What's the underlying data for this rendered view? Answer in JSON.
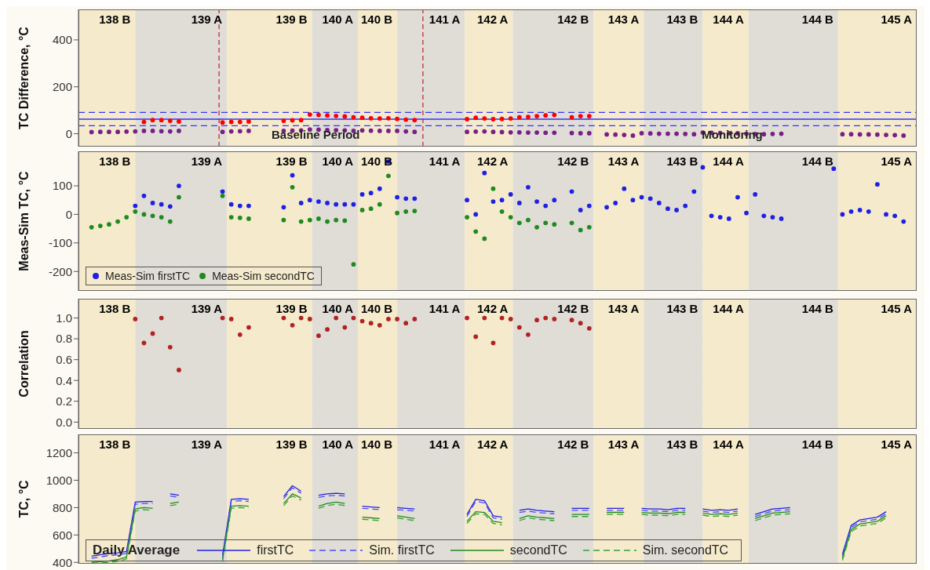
{
  "chart_data": [
    {
      "type": "scatter",
      "ylabel": "TC Difference, °C",
      "categories": [
        null,
        null,
        null,
        null,
        null,
        null,
        null,
        null,
        null,
        null,
        null,
        null,
        null,
        null,
        null,
        null,
        null,
        null,
        null,
        null,
        null,
        null,
        null,
        null,
        null,
        null,
        null,
        null,
        null,
        null,
        null,
        null,
        null,
        null,
        null,
        null,
        null,
        null,
        null,
        null,
        null,
        null,
        null,
        null,
        null,
        null,
        null,
        null,
        null,
        null,
        null,
        null,
        null,
        null,
        null,
        null,
        null,
        null,
        null,
        null,
        null,
        null,
        null,
        null,
        null,
        null,
        null,
        null,
        null,
        null,
        null,
        null,
        null,
        null,
        null,
        null,
        null,
        null,
        null,
        null,
        null,
        null,
        null,
        null,
        null,
        null,
        null,
        null,
        null,
        null,
        null,
        null,
        null,
        null,
        null,
        null
      ],
      "ylim": [
        -55,
        530
      ],
      "yticks": [
        0,
        200,
        400
      ],
      "tick_labels": "y",
      "marker": "circle",
      "series": [
        {
          "color": "#ff0000",
          "values": [
            null,
            null,
            null,
            null,
            null,
            null,
            null,
            50,
            58,
            58,
            55,
            52,
            null,
            null,
            null,
            null,
            48,
            50,
            50,
            52,
            null,
            null,
            null,
            55,
            57,
            58,
            82,
            80,
            78,
            76,
            74,
            70,
            68,
            66,
            65,
            66,
            63,
            60,
            58,
            null,
            null,
            null,
            null,
            null,
            62,
            68,
            65,
            62,
            63,
            65,
            70,
            72,
            75,
            78,
            80,
            null,
            70,
            75,
            75,
            null,
            null,
            null,
            null,
            null,
            null,
            null,
            null,
            null,
            null,
            null,
            null,
            null,
            null,
            null,
            null,
            null,
            null,
            null,
            null,
            null,
            null,
            null,
            null,
            null,
            null,
            null,
            null,
            null,
            null,
            null,
            null,
            null,
            null,
            null,
            null,
            null
          ]
        },
        {
          "color": "#7a1f8a",
          "values": [
            null,
            7,
            8,
            8,
            8,
            9,
            10,
            12,
            12,
            11,
            10,
            12,
            null,
            null,
            null,
            null,
            8,
            10,
            11,
            12,
            null,
            null,
            null,
            12,
            13,
            14,
            18,
            17,
            16,
            15,
            14,
            12,
            14,
            13,
            12,
            12,
            12,
            10,
            8,
            null,
            null,
            null,
            null,
            null,
            8,
            9,
            10,
            8,
            7,
            6,
            6,
            5,
            5,
            4,
            4,
            null,
            3,
            2,
            2,
            null,
            -3,
            -4,
            -5,
            -8,
            2,
            1,
            0,
            0,
            0,
            -1,
            -2,
            5,
            4,
            3,
            2,
            2,
            0,
            -1,
            -2,
            -1,
            0,
            null,
            null,
            null,
            null,
            null,
            null,
            -2,
            -2,
            -3,
            -3,
            -4,
            -5,
            -6,
            -8,
            null
          ]
        }
      ],
      "ref_lines": [
        {
          "axis": "y",
          "value": 91,
          "color": "#3333ff",
          "line_style": "dashed"
        },
        {
          "axis": "y",
          "value": 62,
          "color": "#3333ff",
          "line_style": "solid"
        },
        {
          "axis": "y",
          "value": 34,
          "color": "#3333ff",
          "line_style": "dashed"
        }
      ],
      "annotations": [
        "138 B",
        "139 A",
        "139 B",
        "140 A",
        "140 B",
        "141 A",
        "142 A",
        "142 B",
        "143 A",
        "143 B",
        "144 A",
        "144 B",
        "145 A",
        "Baseline Period",
        "Monitoring"
      ]
    },
    {
      "type": "scatter",
      "ylabel": "Meas-Sim TC, °C",
      "categories": [
        null,
        null,
        null,
        null,
        null,
        null,
        null,
        null,
        null,
        null,
        null,
        null,
        null,
        null,
        null,
        null,
        null,
        null,
        null,
        null,
        null,
        null,
        null,
        null,
        null,
        null,
        null,
        null,
        null,
        null,
        null,
        null,
        null,
        null,
        null,
        null,
        null,
        null,
        null,
        null,
        null,
        null,
        null,
        null,
        null,
        null,
        null,
        null,
        null,
        null,
        null,
        null,
        null,
        null,
        null,
        null,
        null,
        null,
        null,
        null,
        null,
        null,
        null,
        null,
        null,
        null,
        null,
        null,
        null,
        null,
        null,
        null,
        null,
        null,
        null,
        null,
        null,
        null,
        null,
        null,
        null,
        null,
        null,
        null,
        null,
        null,
        null,
        null,
        null,
        null,
        null,
        null,
        null,
        null,
        null,
        null
      ],
      "ylim": [
        -268,
        221
      ],
      "yticks": [
        -200,
        -100,
        0,
        100
      ],
      "tick_labels": "y",
      "grid": "y",
      "legend": "bottom left",
      "marker": "circle",
      "series": [
        {
          "name": "Meas-Sim firstTC",
          "color": "#1f1fe6",
          "values": [
            null,
            null,
            null,
            null,
            null,
            null,
            30,
            65,
            40,
            35,
            28,
            100,
            null,
            null,
            null,
            null,
            80,
            35,
            30,
            30,
            null,
            null,
            null,
            25,
            137,
            40,
            50,
            45,
            40,
            35,
            35,
            35,
            70,
            75,
            90,
            185,
            60,
            55,
            55,
            null,
            null,
            null,
            null,
            null,
            50,
            0,
            145,
            45,
            50,
            70,
            40,
            95,
            45,
            30,
            50,
            null,
            80,
            15,
            30,
            null,
            25,
            40,
            90,
            50,
            60,
            55,
            40,
            20,
            15,
            30,
            80,
            165,
            -5,
            -10,
            -15,
            60,
            5,
            70,
            -5,
            -10,
            -15,
            null,
            null,
            null,
            null,
            null,
            160,
            0,
            10,
            15,
            10,
            105,
            0,
            -5,
            -25,
            null
          ]
        },
        {
          "name": "Meas-Sim secondTC",
          "color": "#1f8a1f",
          "values": [
            null,
            -45,
            -40,
            -35,
            -25,
            -10,
            10,
            0,
            -5,
            -10,
            -25,
            60,
            null,
            null,
            null,
            null,
            65,
            -10,
            -12,
            -15,
            null,
            null,
            null,
            -20,
            95,
            -25,
            -20,
            -15,
            -25,
            -20,
            -22,
            -175,
            15,
            20,
            35,
            135,
            5,
            10,
            12,
            null,
            null,
            null,
            null,
            null,
            -10,
            -60,
            -85,
            90,
            10,
            -10,
            -30,
            -20,
            -45,
            -30,
            -35,
            null,
            -30,
            -55,
            -45,
            null,
            null,
            null,
            null,
            null,
            null,
            null,
            null,
            null,
            null,
            null,
            null,
            null,
            null,
            null,
            null,
            null,
            null,
            null,
            null,
            null,
            null,
            null,
            null,
            null,
            null,
            null,
            null,
            null,
            null,
            null,
            null,
            null,
            null,
            null,
            null,
            null
          ]
        }
      ],
      "annotations": [
        "138 B",
        "139 A",
        "139 B",
        "140 A",
        "140 B",
        "141 A",
        "142 A",
        "142 B",
        "143 A",
        "143 B",
        "144 A",
        "144 B",
        "145 A"
      ]
    },
    {
      "type": "scatter",
      "ylabel": "Correlation",
      "categories": [
        null,
        null,
        null,
        null,
        null,
        null,
        null,
        null,
        null,
        null,
        null,
        null,
        null,
        null,
        null,
        null,
        null,
        null,
        null,
        null,
        null,
        null,
        null,
        null,
        null,
        null,
        null,
        null,
        null,
        null,
        null,
        null,
        null,
        null,
        null,
        null,
        null,
        null,
        null,
        null,
        null,
        null,
        null,
        null,
        null,
        null,
        null,
        null,
        null,
        null,
        null,
        null,
        null,
        null,
        null,
        null,
        null,
        null,
        null,
        null,
        null,
        null,
        null,
        null,
        null,
        null,
        null,
        null,
        null,
        null,
        null,
        null,
        null,
        null,
        null,
        null,
        null,
        null,
        null,
        null,
        null,
        null,
        null,
        null,
        null,
        null,
        null,
        null,
        null,
        null,
        null,
        null,
        null,
        null,
        null,
        null
      ],
      "ylim": [
        -0.065,
        1.185
      ],
      "yticks": [
        {
          "value": 0,
          "label": "0.0"
        },
        {
          "value": 0.2,
          "label": "0.2"
        },
        {
          "value": 0.4,
          "label": "0.4"
        },
        {
          "value": 0.6,
          "label": "0.6"
        },
        {
          "value": 0.8,
          "label": "0.8"
        },
        {
          "value": 1,
          "label": "1.0"
        }
      ],
      "tick_labels": "y",
      "grid": "y",
      "marker": "circle",
      "series": [
        {
          "color": "#b22222",
          "values": [
            null,
            null,
            null,
            null,
            null,
            null,
            0.99,
            0.76,
            0.85,
            1.0,
            0.72,
            0.5,
            null,
            null,
            null,
            null,
            1.0,
            0.99,
            0.84,
            0.91,
            null,
            null,
            null,
            1.0,
            0.93,
            1.0,
            0.99,
            0.83,
            0.89,
            1.0,
            0.91,
            1.0,
            0.97,
            0.95,
            0.93,
            0.99,
            0.99,
            0.95,
            0.99,
            null,
            null,
            null,
            null,
            null,
            1.0,
            0.82,
            1.0,
            0.76,
            1.0,
            0.99,
            0.91,
            0.84,
            0.98,
            1.0,
            0.99,
            null,
            0.98,
            0.95,
            0.9,
            null,
            null,
            null,
            null,
            null,
            null,
            null,
            null,
            null,
            null,
            null,
            null,
            null,
            null,
            null,
            null,
            null,
            null,
            null,
            null,
            null,
            null,
            null,
            null,
            null,
            null,
            null,
            null,
            null,
            null,
            null,
            null,
            null,
            null,
            null,
            null,
            null
          ]
        }
      ],
      "annotations": [
        "138 B",
        "139 A",
        "139 B",
        "140 A",
        "140 B",
        "141 A",
        "142 A",
        "142 B",
        "143 A",
        "143 B",
        "144 A",
        "144 B",
        "145 A"
      ]
    },
    {
      "type": "line",
      "ylabel": "TC, °C",
      "legend_title": "Daily Average",
      "categories": [
        null,
        null,
        null,
        null,
        null,
        null,
        null,
        null,
        null,
        null,
        null,
        null,
        null,
        null,
        null,
        null,
        null,
        null,
        null,
        null,
        null,
        null,
        null,
        null,
        null,
        null,
        null,
        null,
        null,
        null,
        null,
        null,
        null,
        null,
        null,
        null,
        null,
        null,
        null,
        null,
        null,
        null,
        null,
        null,
        null,
        null,
        null,
        null,
        null,
        null,
        null,
        null,
        null,
        null,
        null,
        null,
        null,
        null,
        null,
        null,
        null,
        null,
        null,
        null,
        null,
        null,
        null,
        null,
        null,
        null,
        null,
        null,
        null,
        null,
        null,
        null,
        null,
        null,
        null,
        null,
        null,
        null,
        null,
        null,
        null,
        null,
        null,
        null,
        null,
        null,
        null,
        null,
        null,
        null,
        null,
        null
      ],
      "ylim": [
        390,
        1335
      ],
      "yticks": [
        400,
        600,
        800,
        1000,
        1200
      ],
      "tick_labels": "y",
      "grid": "y",
      "legend": "bottom left",
      "series": [
        {
          "name": "firstTC",
          "color": "#1f1fe6",
          "line_style": "solid",
          "values": [
            null,
            445,
            455,
            465,
            470,
            480,
            840,
            845,
            845,
            null,
            900,
            890,
            null,
            null,
            null,
            null,
            450,
            860,
            865,
            860,
            null,
            null,
            null,
            880,
            960,
            920,
            null,
            890,
            900,
            905,
            900,
            null,
            810,
            805,
            800,
            null,
            800,
            795,
            790,
            null,
            null,
            null,
            null,
            null,
            750,
            860,
            850,
            740,
            730,
            null,
            780,
            790,
            780,
            775,
            770,
            null,
            795,
            795,
            795,
            null,
            795,
            795,
            795,
            null,
            795,
            790,
            790,
            785,
            795,
            795,
            null,
            790,
            780,
            785,
            780,
            790,
            null,
            750,
            770,
            790,
            795,
            800,
            null,
            null,
            null,
            null,
            null,
            460,
            670,
            710,
            720,
            730,
            770,
            null,
            null,
            null
          ]
        },
        {
          "name": "Sim. firstTC",
          "color": "#4a4aff",
          "line_style": "dashed",
          "values": [
            null,
            430,
            440,
            450,
            455,
            465,
            825,
            830,
            830,
            null,
            885,
            875,
            null,
            null,
            null,
            null,
            435,
            845,
            850,
            845,
            null,
            null,
            null,
            865,
            945,
            905,
            null,
            875,
            885,
            890,
            885,
            null,
            795,
            790,
            785,
            null,
            785,
            780,
            775,
            null,
            null,
            null,
            null,
            null,
            735,
            845,
            835,
            725,
            715,
            null,
            765,
            775,
            765,
            760,
            755,
            null,
            780,
            780,
            780,
            null,
            780,
            780,
            780,
            null,
            780,
            775,
            775,
            770,
            780,
            780,
            null,
            775,
            765,
            770,
            765,
            775,
            null,
            735,
            755,
            775,
            780,
            785,
            null,
            null,
            null,
            null,
            null,
            445,
            655,
            695,
            705,
            715,
            755,
            null,
            null,
            null
          ]
        },
        {
          "name": "secondTC",
          "color": "#1f8a1f",
          "line_style": "solid",
          "values": [
            null,
            400,
            405,
            410,
            420,
            440,
            790,
            800,
            795,
            null,
            830,
            840,
            null,
            null,
            null,
            null,
            420,
            810,
            815,
            810,
            null,
            null,
            null,
            830,
            900,
            870,
            null,
            810,
            830,
            840,
            830,
            null,
            730,
            725,
            720,
            null,
            740,
            730,
            720,
            null,
            null,
            null,
            null,
            null,
            700,
            770,
            765,
            700,
            690,
            null,
            720,
            740,
            730,
            725,
            720,
            null,
            750,
            750,
            750,
            null,
            765,
            765,
            765,
            null,
            765,
            760,
            760,
            755,
            765,
            765,
            null,
            760,
            750,
            755,
            750,
            760,
            null,
            720,
            740,
            760,
            765,
            770,
            null,
            null,
            null,
            null,
            null,
            430,
            640,
            680,
            690,
            700,
            740,
            null,
            null,
            null
          ]
        },
        {
          "name": "Sim. secondTC",
          "color": "#36a336",
          "line_style": "dashed",
          "values": [
            null,
            392,
            395,
            400,
            408,
            425,
            775,
            785,
            780,
            null,
            815,
            825,
            null,
            null,
            null,
            null,
            405,
            795,
            800,
            795,
            null,
            null,
            null,
            815,
            885,
            855,
            null,
            795,
            815,
            825,
            815,
            null,
            715,
            710,
            705,
            null,
            725,
            715,
            705,
            null,
            null,
            null,
            null,
            null,
            685,
            755,
            750,
            685,
            675,
            null,
            705,
            725,
            715,
            710,
            705,
            null,
            735,
            735,
            735,
            null,
            750,
            750,
            750,
            null,
            750,
            745,
            745,
            740,
            750,
            750,
            null,
            745,
            735,
            740,
            735,
            745,
            null,
            705,
            725,
            745,
            750,
            755,
            null,
            null,
            null,
            null,
            null,
            415,
            625,
            665,
            675,
            685,
            725,
            null,
            null,
            null
          ]
        }
      ],
      "annotations": [
        "138 B",
        "139 A",
        "139 B",
        "140 A",
        "140 B",
        "141 A",
        "142 A",
        "142 B",
        "143 A",
        "143 B",
        "144 A",
        "144 B",
        "145 A"
      ]
    }
  ]
}
